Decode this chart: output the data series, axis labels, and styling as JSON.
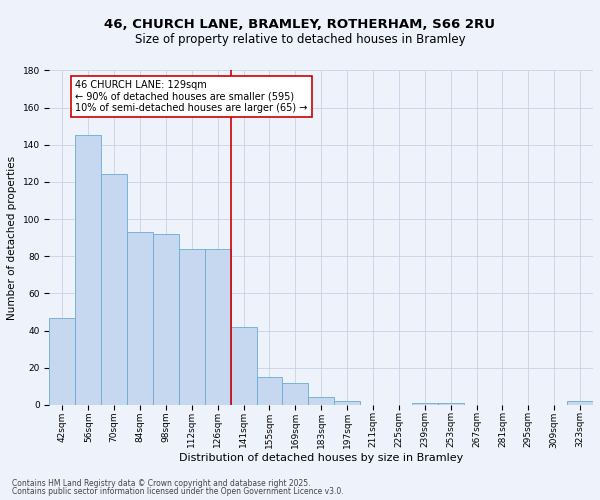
{
  "title1": "46, CHURCH LANE, BRAMLEY, ROTHERHAM, S66 2RU",
  "title2": "Size of property relative to detached houses in Bramley",
  "xlabel": "Distribution of detached houses by size in Bramley",
  "ylabel": "Number of detached properties",
  "categories": [
    "42sqm",
    "56sqm",
    "70sqm",
    "84sqm",
    "98sqm",
    "112sqm",
    "126sqm",
    "141sqm",
    "155sqm",
    "169sqm",
    "183sqm",
    "197sqm",
    "211sqm",
    "225sqm",
    "239sqm",
    "253sqm",
    "267sqm",
    "281sqm",
    "295sqm",
    "309sqm",
    "323sqm"
  ],
  "values": [
    47,
    145,
    124,
    93,
    92,
    84,
    84,
    42,
    15,
    12,
    4,
    2,
    0,
    0,
    1,
    1,
    0,
    0,
    0,
    0,
    2
  ],
  "bar_color": "#c5d8f0",
  "bar_edge_color": "#6aaad4",
  "ylim": [
    0,
    180
  ],
  "yticks": [
    0,
    20,
    40,
    60,
    80,
    100,
    120,
    140,
    160,
    180
  ],
  "vline_x_index": 6.5,
  "vline_color": "#cc0000",
  "annotation_text": "46 CHURCH LANE: 129sqm\n← 90% of detached houses are smaller (595)\n10% of semi-detached houses are larger (65) →",
  "annotation_box_color": "#ffffff",
  "annotation_box_edge": "#cc0000",
  "footer1": "Contains HM Land Registry data © Crown copyright and database right 2025.",
  "footer2": "Contains public sector information licensed under the Open Government Licence v3.0.",
  "bg_color": "#eef2fa",
  "title1_fontsize": 9.5,
  "title2_fontsize": 8.5,
  "xlabel_fontsize": 8,
  "ylabel_fontsize": 7.5,
  "tick_fontsize": 6.5,
  "annotation_fontsize": 7,
  "footer_fontsize": 5.5
}
